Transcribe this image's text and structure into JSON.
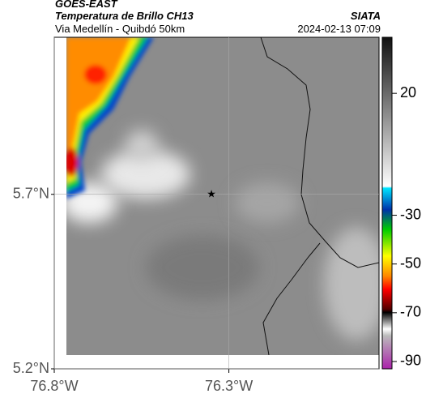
{
  "header": {
    "source": "GOES-EAST",
    "title": "Temperatura de Brillo CH13",
    "subtitle": "Via Medellín - Quibdó 50km",
    "org": "SIATA",
    "timestamp": "2024-02-13 07:09"
  },
  "map": {
    "xlim": [
      -76.8,
      -75.87
    ],
    "ylim": [
      5.2,
      6.15
    ],
    "xticks": [
      {
        "value": -76.8,
        "label": "76.8°W"
      },
      {
        "value": -76.3,
        "label": "76.3°W"
      }
    ],
    "yticks": [
      {
        "value": 5.2,
        "label": "5.2°N"
      },
      {
        "value": 5.7,
        "label": "5.7°N"
      }
    ],
    "grid": true,
    "marker": {
      "lon": -76.35,
      "lat": 5.7
    }
  },
  "colorbar": {
    "lim": [
      -93,
      43
    ],
    "ticks": [
      20,
      -30,
      -50,
      -70,
      -90
    ]
  }
}
